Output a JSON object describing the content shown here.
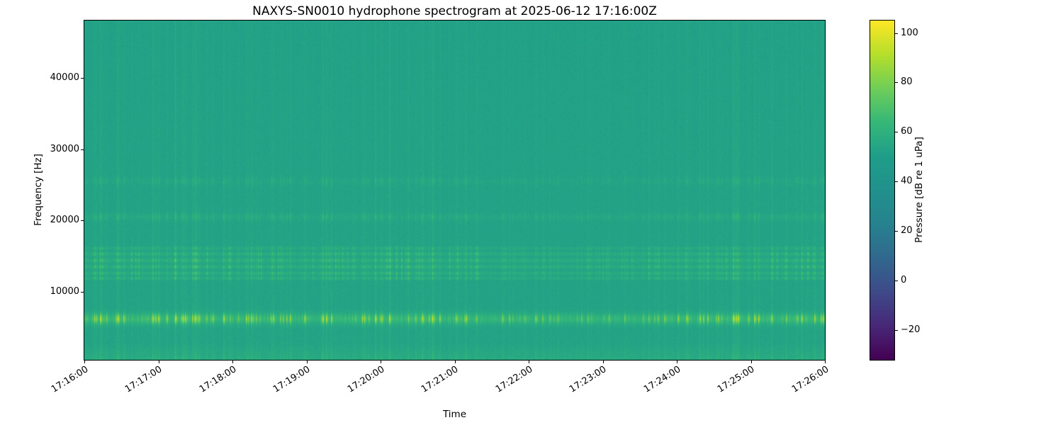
{
  "chart_data": {
    "type": "heatmap",
    "subtype": "spectrogram",
    "title": "NAXYS-SN0010 hydrophone spectrogram at 2025-06-12 17:16:00Z",
    "xlabel": "Time",
    "ylabel": "Frequency [Hz]",
    "x_range_seconds": [
      0,
      600
    ],
    "y_range_hz": [
      500,
      48000
    ],
    "grid": false,
    "x_ticks": [
      {
        "label": "17:16:00",
        "seconds": 0
      },
      {
        "label": "17:17:00",
        "seconds": 60
      },
      {
        "label": "17:18:00",
        "seconds": 120
      },
      {
        "label": "17:19:00",
        "seconds": 180
      },
      {
        "label": "17:20:00",
        "seconds": 240
      },
      {
        "label": "17:21:00",
        "seconds": 300
      },
      {
        "label": "17:22:00",
        "seconds": 360
      },
      {
        "label": "17:23:00",
        "seconds": 420
      },
      {
        "label": "17:24:00",
        "seconds": 480
      },
      {
        "label": "17:25:00",
        "seconds": 540
      },
      {
        "label": "17:26:00",
        "seconds": 600
      }
    ],
    "y_ticks": [
      {
        "label": "10000",
        "hz": 10000
      },
      {
        "label": "20000",
        "hz": 20000
      },
      {
        "label": "30000",
        "hz": 30000
      },
      {
        "label": "40000",
        "hz": 40000
      }
    ],
    "colorbar": {
      "label": "Pressure [dB re 1 uPa]",
      "vmin": -32,
      "vmax": 105,
      "colormap": "viridis",
      "ticks": [
        {
          "label": "100",
          "value": 100
        },
        {
          "label": "80",
          "value": 80
        },
        {
          "label": "60",
          "value": 60
        },
        {
          "label": "40",
          "value": 40
        },
        {
          "label": "20",
          "value": 20
        },
        {
          "label": "0",
          "value": 0
        },
        {
          "label": "−20",
          "value": -20
        }
      ],
      "anchors": [
        {
          "t": 0.0,
          "color": "#440154"
        },
        {
          "t": 0.1,
          "color": "#482878"
        },
        {
          "t": 0.2,
          "color": "#3e4a89"
        },
        {
          "t": 0.3,
          "color": "#31688e"
        },
        {
          "t": 0.4,
          "color": "#26828e"
        },
        {
          "t": 0.5,
          "color": "#21918c"
        },
        {
          "t": 0.6,
          "color": "#1f9e89"
        },
        {
          "t": 0.7,
          "color": "#35b779"
        },
        {
          "t": 0.8,
          "color": "#6ece58"
        },
        {
          "t": 0.9,
          "color": "#b5de2b"
        },
        {
          "t": 1.0,
          "color": "#fde725"
        }
      ]
    },
    "spectrogram_model": {
      "comment": "Estimated content read off the pixels: broadband teal background ~52 dB, bright dashed tonal band near 6 kHz reaching ~85-95 dB, cluster of pulsed narrow bands 11.5-16 kHz ~65-70 dB, faint bands near 20-26 kHz, brighter mottled strip below ~2.8 kHz, dense vertical transient striations grouped in bursts over the 10-minute record.",
      "background_db": 52,
      "noise_db": 1.6,
      "broadband_pulse_db": 4,
      "low_freq_boost": {
        "below_hz": 2800,
        "db": 3.5
      },
      "bands": [
        {
          "center_hz": 6200,
          "halfwidth_hz": 500,
          "base_db": 7.0,
          "pulse_db": 28,
          "env": "A6"
        },
        {
          "center_hz": 11900,
          "halfwidth_hz": 160,
          "base_db": 2.5,
          "pulse_db": 11,
          "env": "B"
        },
        {
          "center_hz": 12600,
          "halfwidth_hz": 180,
          "base_db": 3.0,
          "pulse_db": 12,
          "env": "B"
        },
        {
          "center_hz": 13500,
          "halfwidth_hz": 200,
          "base_db": 3.5,
          "pulse_db": 13,
          "env": "B"
        },
        {
          "center_hz": 14400,
          "halfwidth_hz": 220,
          "base_db": 3.5,
          "pulse_db": 13,
          "env": "B"
        },
        {
          "center_hz": 15300,
          "halfwidth_hz": 200,
          "base_db": 3.0,
          "pulse_db": 12,
          "env": "B"
        },
        {
          "center_hz": 16100,
          "halfwidth_hz": 160,
          "base_db": 2.0,
          "pulse_db": 9,
          "env": "B"
        },
        {
          "center_hz": 20500,
          "halfwidth_hz": 350,
          "base_db": 1.5,
          "pulse_db": 7,
          "env": "A"
        },
        {
          "center_hz": 25500,
          "halfwidth_hz": 400,
          "base_db": 1.0,
          "pulse_db": 5,
          "env": "A"
        }
      ],
      "seed": 42
    }
  }
}
